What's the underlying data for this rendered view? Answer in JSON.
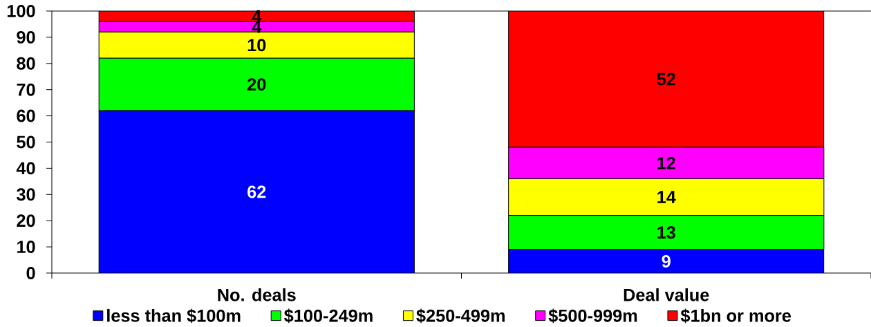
{
  "chart_data": {
    "type": "bar",
    "stacked": true,
    "categories": [
      "No. deals",
      "Deal value"
    ],
    "series": [
      {
        "name": "less than $100m",
        "color": "#0000ff",
        "values": [
          62,
          9
        ]
      },
      {
        "name": "$100-249m",
        "color": "#00ff00",
        "values": [
          20,
          13
        ]
      },
      {
        "name": "$250-499m",
        "color": "#ffff00",
        "values": [
          10,
          14
        ]
      },
      {
        "name": "$500-999m",
        "color": "#ff00ff",
        "values": [
          4,
          12
        ]
      },
      {
        "name": "$1bn or more",
        "color": "#ff0000",
        "values": [
          4,
          52
        ]
      }
    ],
    "ylim": [
      0,
      100
    ],
    "yticks": [
      0,
      10,
      20,
      30,
      40,
      50,
      60,
      70,
      80,
      90,
      100
    ],
    "data_labels": true,
    "legend": "bottom",
    "grid": false
  }
}
